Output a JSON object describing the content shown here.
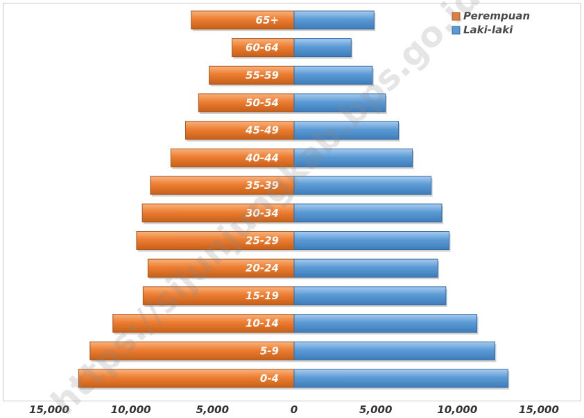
{
  "watermark": "https://sijunjungkab.bps.go.id",
  "chart_data": {
    "type": "bar",
    "orientation": "horizontal-pyramid",
    "categories": [
      "0-4",
      "5-9",
      "10-14",
      "15-19",
      "20-24",
      "25-29",
      "30-34",
      "35-39",
      "40-44",
      "45-49",
      "50-54",
      "55-59",
      "60-64",
      "65+"
    ],
    "series": [
      {
        "name": "Perempuan",
        "color": "#ed7d31",
        "side": "left",
        "values": [
          13200,
          12500,
          11100,
          9250,
          8950,
          9650,
          9300,
          8800,
          7550,
          6650,
          5850,
          5200,
          3800,
          6300
        ]
      },
      {
        "name": "Laki-laki",
        "color": "#5b9bd5",
        "side": "right",
        "values": [
          13100,
          12300,
          11200,
          9300,
          8800,
          9500,
          9050,
          8400,
          7250,
          6400,
          5600,
          4800,
          3500,
          4900
        ]
      }
    ],
    "x_ticks": [
      "15,000",
      "10,000",
      "5,000",
      "0",
      "5,000",
      "10,000",
      "15,000"
    ],
    "xlim": [
      -15000,
      15000
    ],
    "legend": {
      "position": "top-right",
      "items": [
        "Perempuan",
        "Laki-laki"
      ]
    },
    "grid": false
  }
}
